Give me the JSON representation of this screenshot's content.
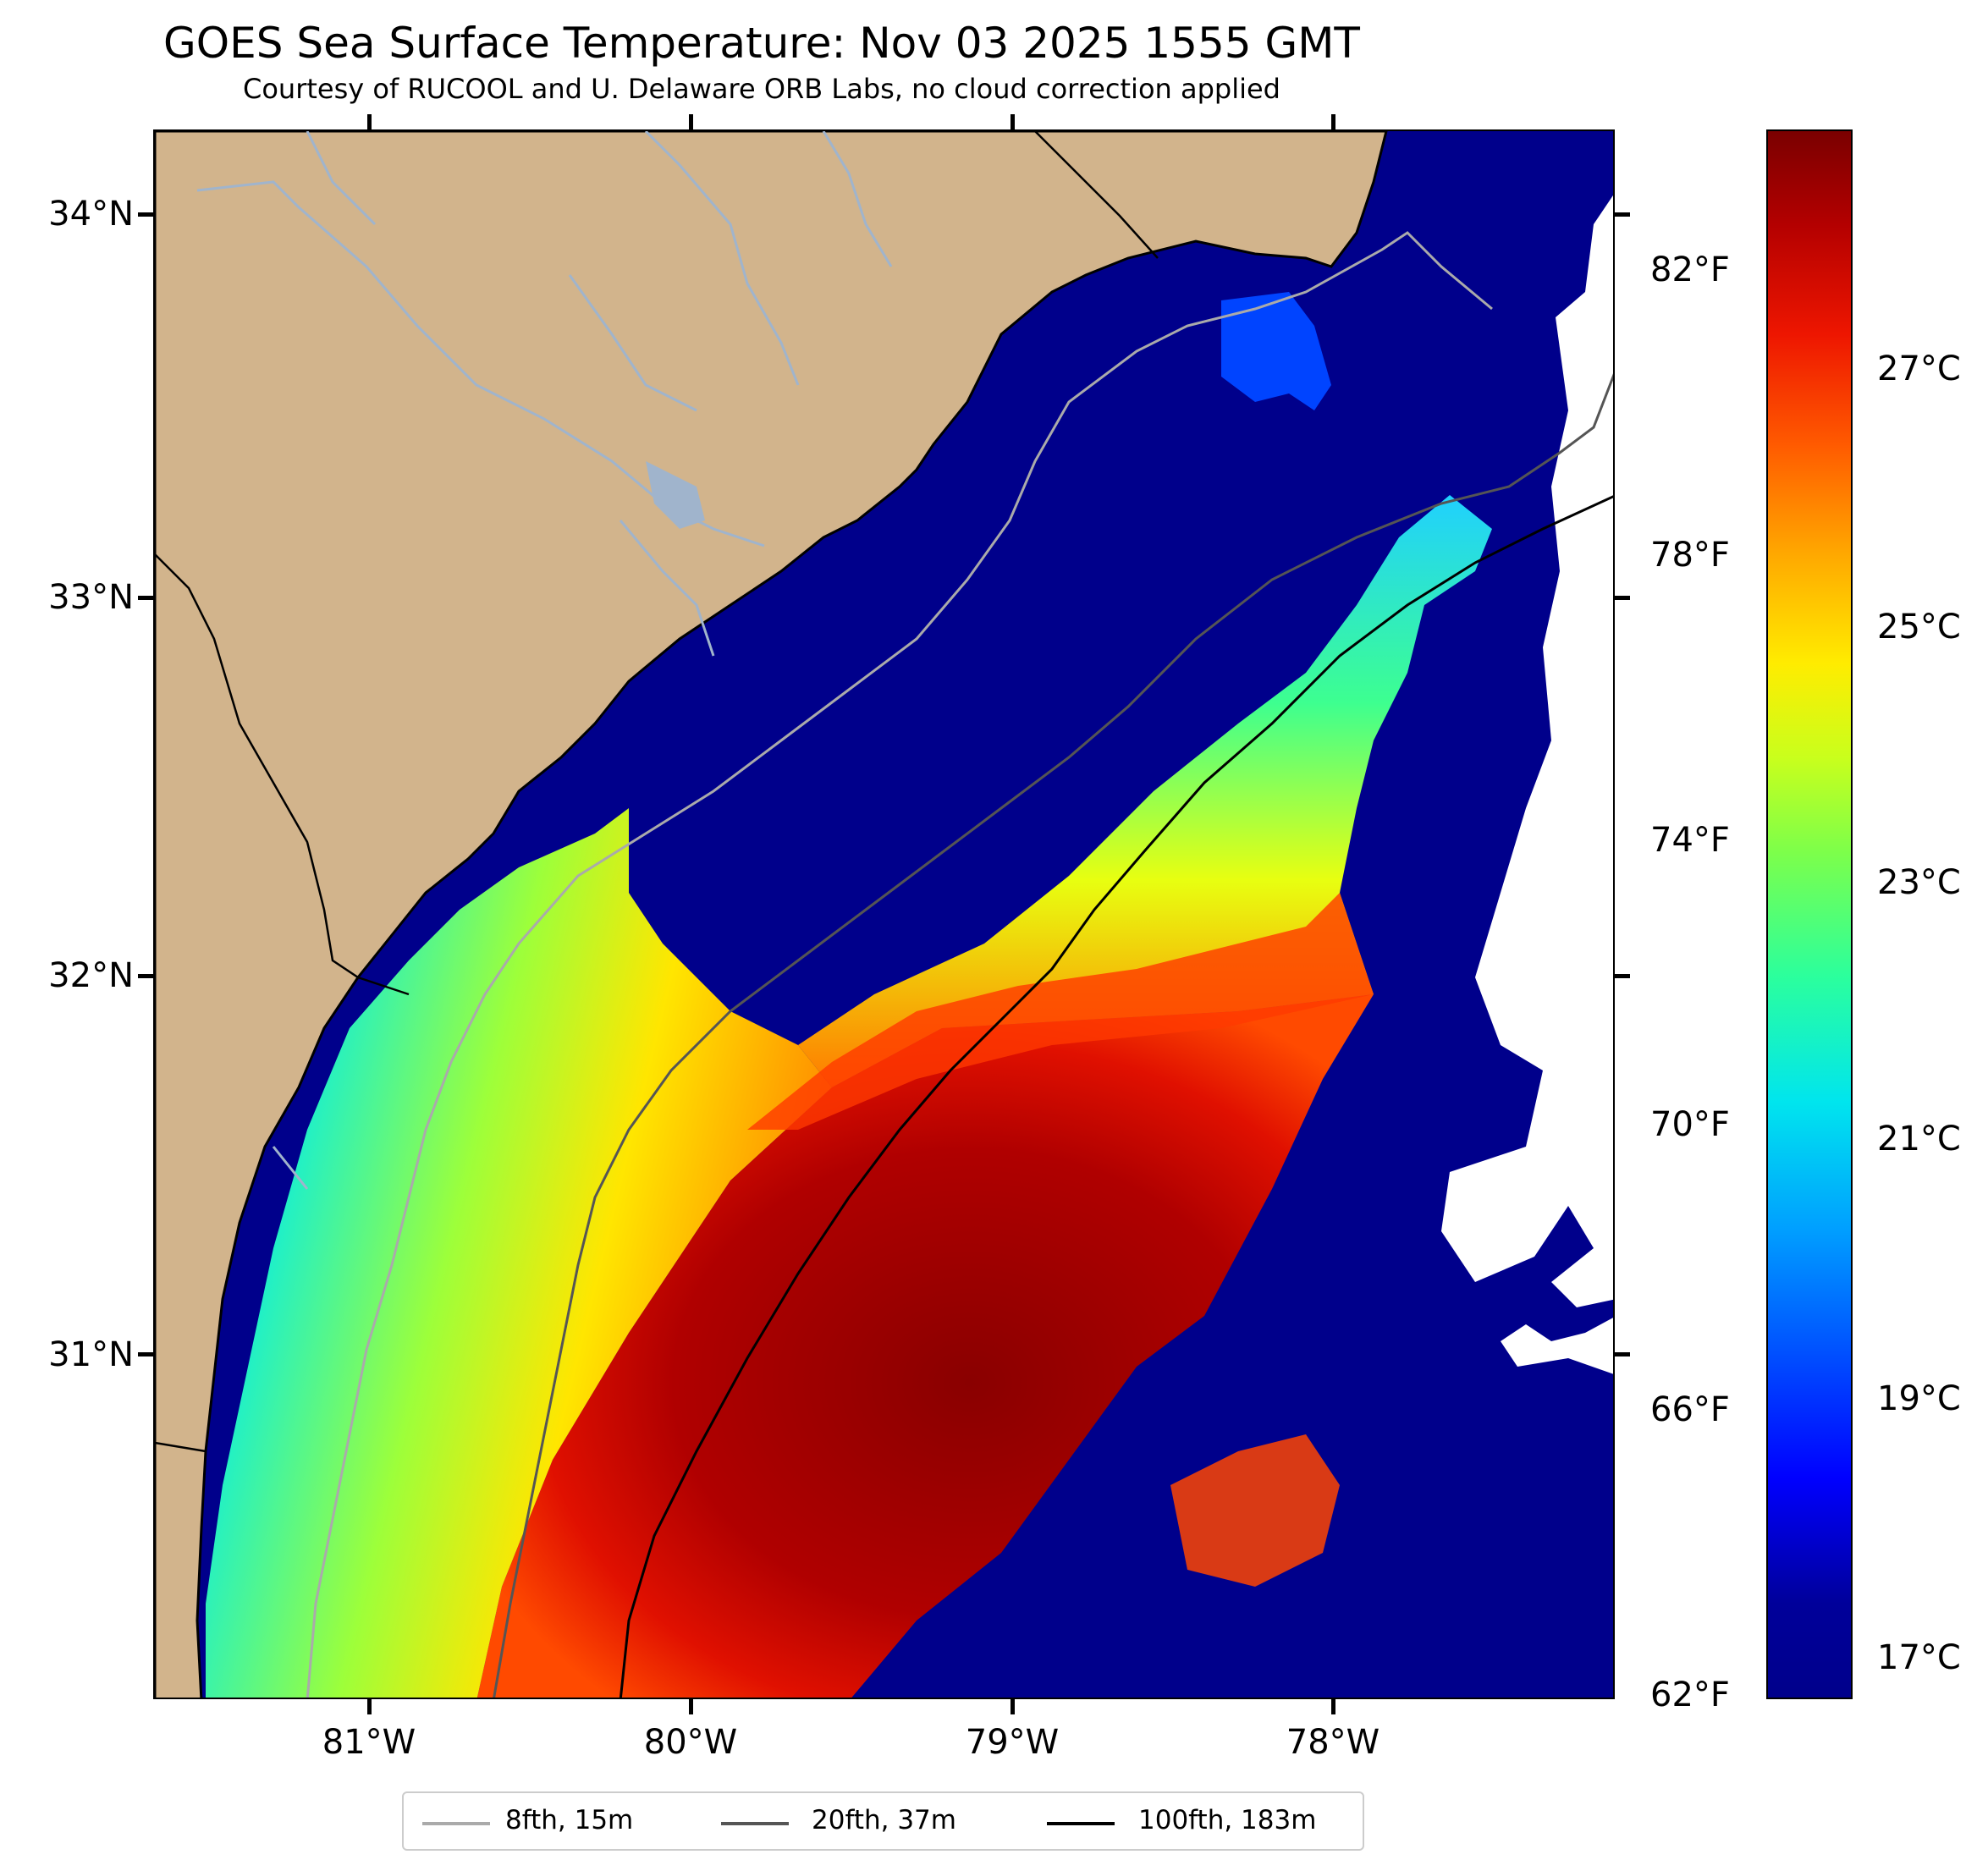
{
  "title": "GOES Sea Surface Temperature: Nov 03 2025 1555 GMT",
  "subtitle": "Courtesy of RUCOOL and U. Delaware ORB Labs, no cloud correction applied",
  "map": {
    "lat_labels": [
      "34°N",
      "33°N",
      "32°N",
      "31°N"
    ],
    "lon_labels": [
      "81°W",
      "80°W",
      "79°W",
      "78°W"
    ],
    "colors": {
      "land": "#d2b48c",
      "cold": "#00008b",
      "river": "#a0b4cc",
      "cloud": "#ffffff"
    }
  },
  "colorbar": {
    "celsius_labels": [
      "27°C",
      "25°C",
      "23°C",
      "21°C",
      "19°C",
      "17°C"
    ],
    "fahrenheit_labels": [
      "82°F",
      "78°F",
      "74°F",
      "70°F",
      "66°F",
      "62°F"
    ]
  },
  "legend": {
    "items": [
      {
        "label": "8fth, 15m",
        "color": "#aaaaaa"
      },
      {
        "label": "20fth, 37m",
        "color": "#555555"
      },
      {
        "label": "100fth, 183m",
        "color": "#000000"
      }
    ]
  }
}
